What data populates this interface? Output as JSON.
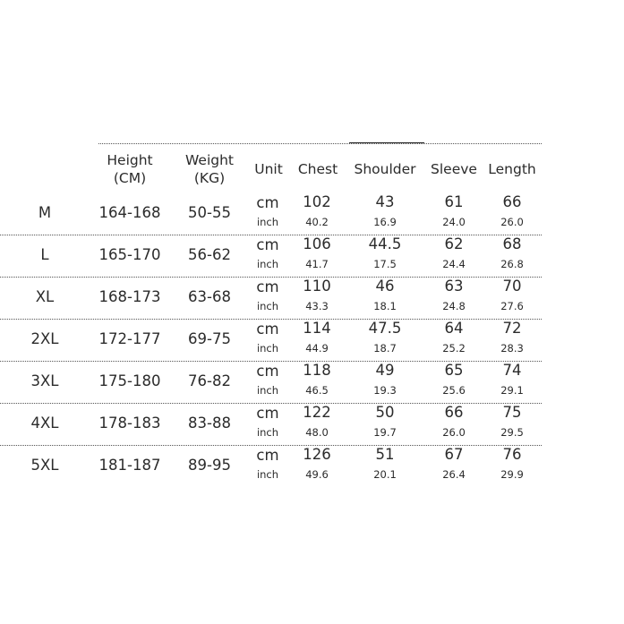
{
  "headers": {
    "height": "Height (CM)",
    "height_l1": "Height",
    "height_l2": "(CM)",
    "weight_l1": "Weight",
    "weight_l2": "(KG)",
    "unit": "Unit",
    "chest": "Chest",
    "shoulder": "Shoulder",
    "sleeve": "Sleeve",
    "length": "Length"
  },
  "units": {
    "cm": "cm",
    "inch": "inch"
  },
  "rows": [
    {
      "size": "M",
      "height": "164-168",
      "weight": "50-55",
      "cm": [
        "102",
        "43",
        "61",
        "66"
      ],
      "inch": [
        "40.2",
        "16.9",
        "24.0",
        "26.0"
      ]
    },
    {
      "size": "L",
      "height": "165-170",
      "weight": "56-62",
      "cm": [
        "106",
        "44.5",
        "62",
        "68"
      ],
      "inch": [
        "41.7",
        "17.5",
        "24.4",
        "26.8"
      ]
    },
    {
      "size": "XL",
      "height": "168-173",
      "weight": "63-68",
      "cm": [
        "110",
        "46",
        "63",
        "70"
      ],
      "inch": [
        "43.3",
        "18.1",
        "24.8",
        "27.6"
      ]
    },
    {
      "size": "2XL",
      "height": "172-177",
      "weight": "69-75",
      "cm": [
        "114",
        "47.5",
        "64",
        "72"
      ],
      "inch": [
        "44.9",
        "18.7",
        "25.2",
        "28.3"
      ]
    },
    {
      "size": "3XL",
      "height": "175-180",
      "weight": "76-82",
      "cm": [
        "118",
        "49",
        "65",
        "74"
      ],
      "inch": [
        "46.5",
        "19.3",
        "25.6",
        "29.1"
      ]
    },
    {
      "size": "4XL",
      "height": "178-183",
      "weight": "83-88",
      "cm": [
        "122",
        "50",
        "66",
        "75"
      ],
      "inch": [
        "48.0",
        "19.7",
        "26.0",
        "29.5"
      ]
    },
    {
      "size": "5XL",
      "height": "181-187",
      "weight": "89-95",
      "cm": [
        "126",
        "51",
        "67",
        "76"
      ],
      "inch": [
        "49.6",
        "20.1",
        "26.4",
        "29.9"
      ]
    }
  ]
}
